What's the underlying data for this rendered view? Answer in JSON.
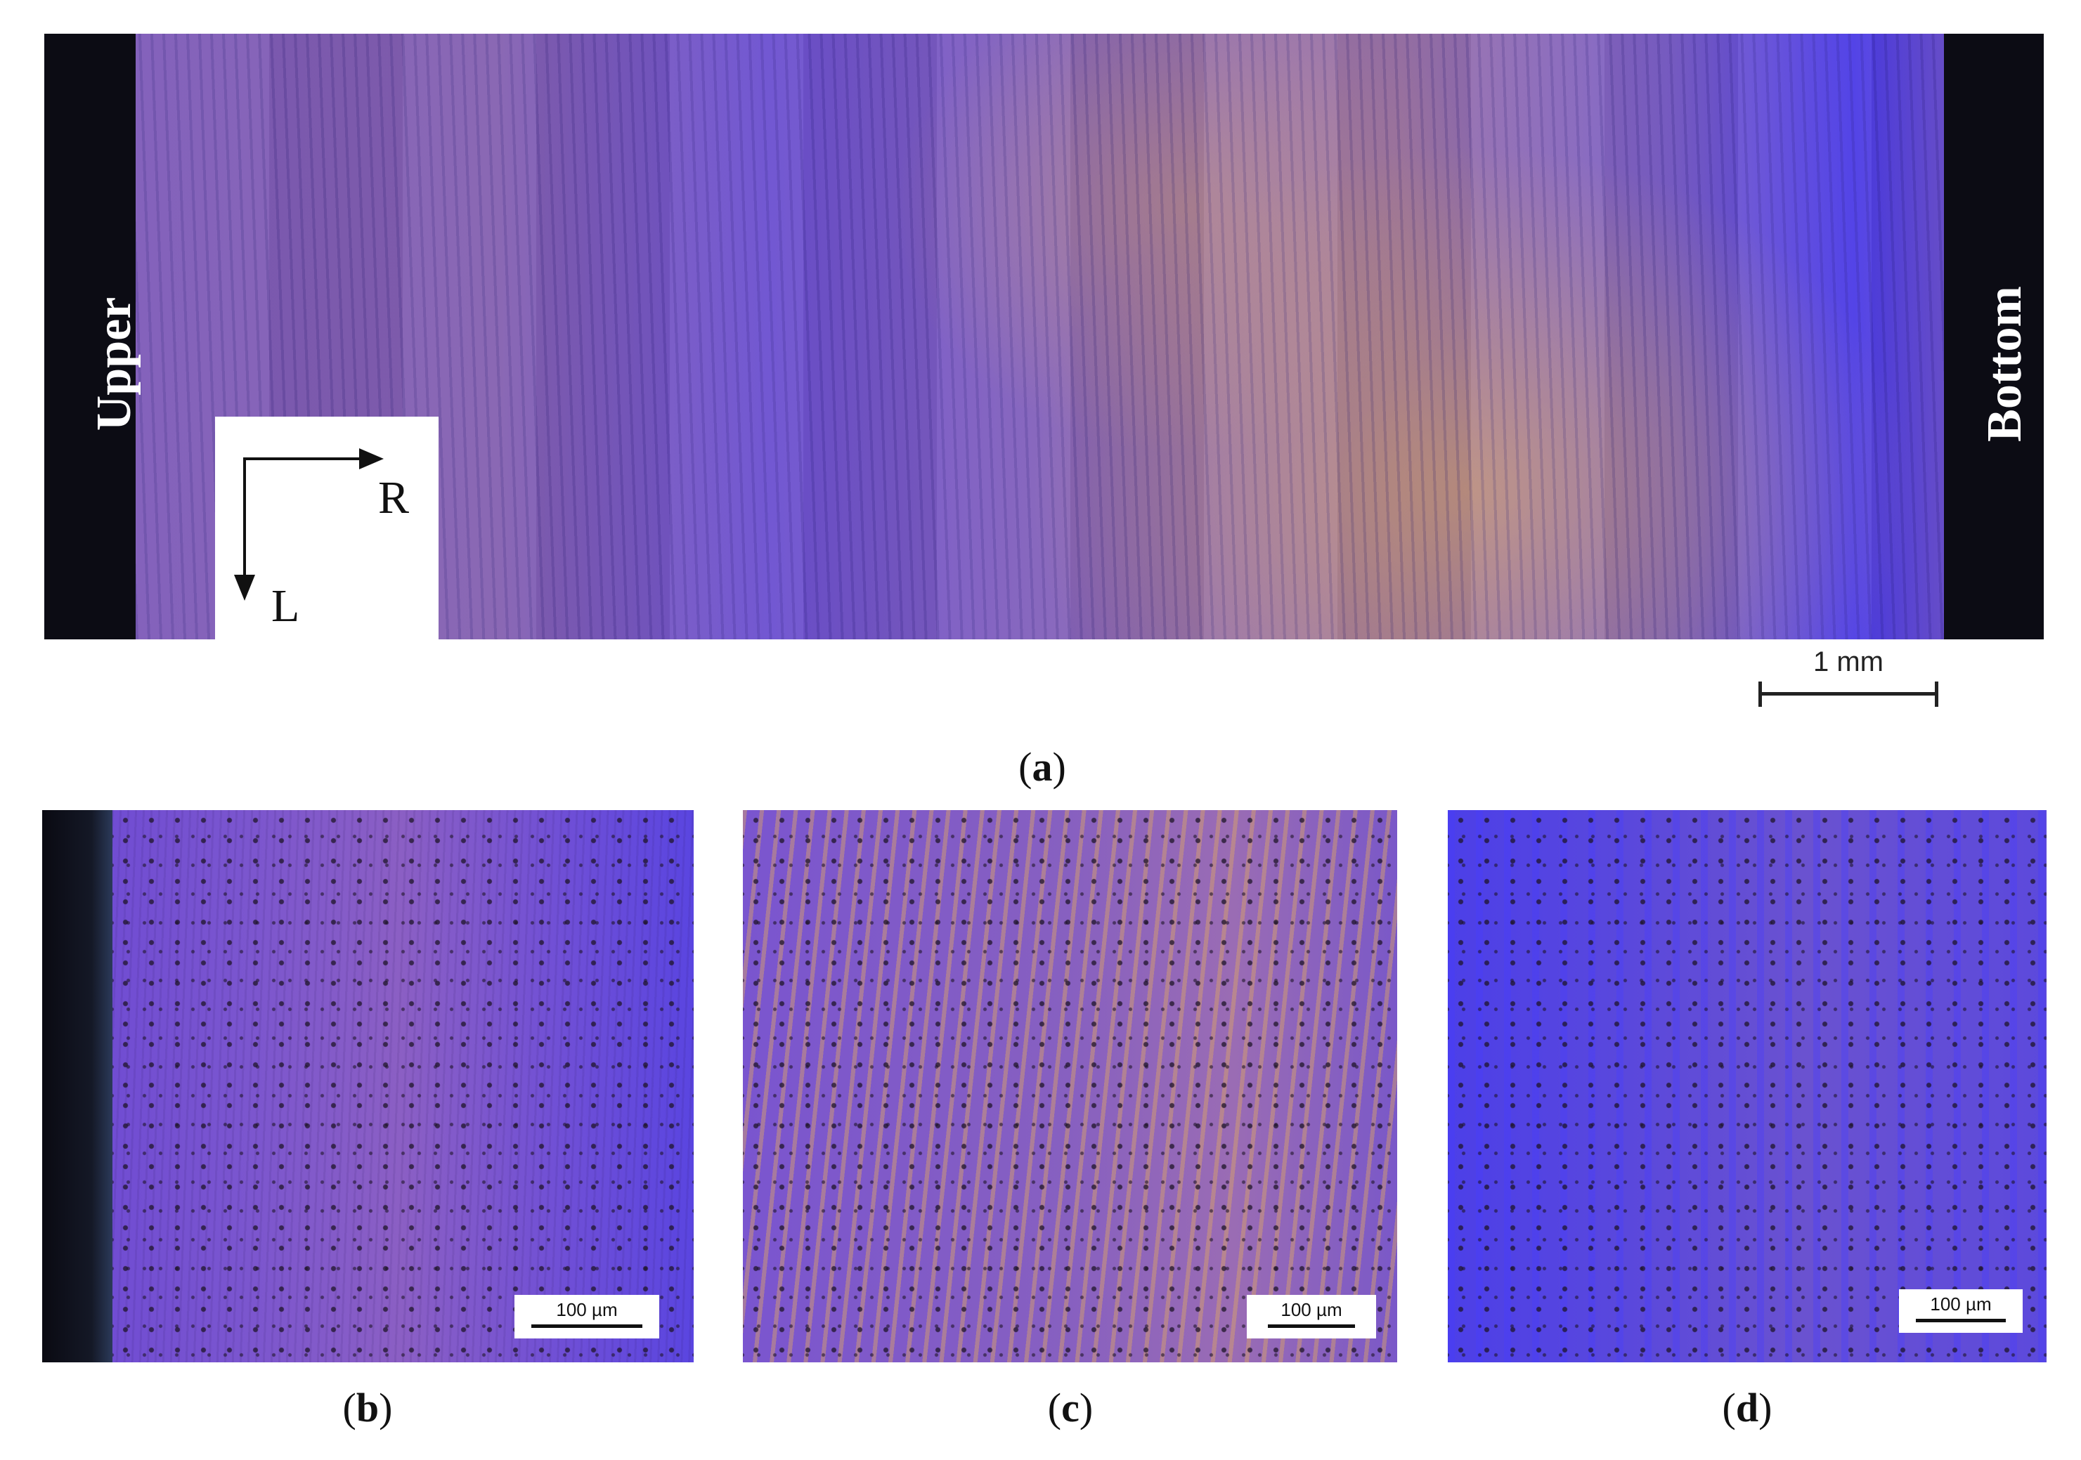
{
  "panel_a": {
    "left_label": "Upper",
    "right_label": "Bottom",
    "axis_r": "R",
    "axis_l": "L",
    "scale_bar": "1 mm",
    "caption_letter": "a"
  },
  "panel_b": {
    "scale_bar": "100 µm",
    "caption_letter": "b"
  },
  "panel_c": {
    "scale_bar": "100 µm",
    "caption_letter": "c"
  },
  "panel_d": {
    "scale_bar": "100 µm",
    "caption_letter": "d"
  },
  "colors": {
    "micrograph_base": "#7a55cf",
    "blue_band": "#4a3ae6",
    "orange_phase": "#d8a060",
    "background_edge": "#0c0c14"
  }
}
